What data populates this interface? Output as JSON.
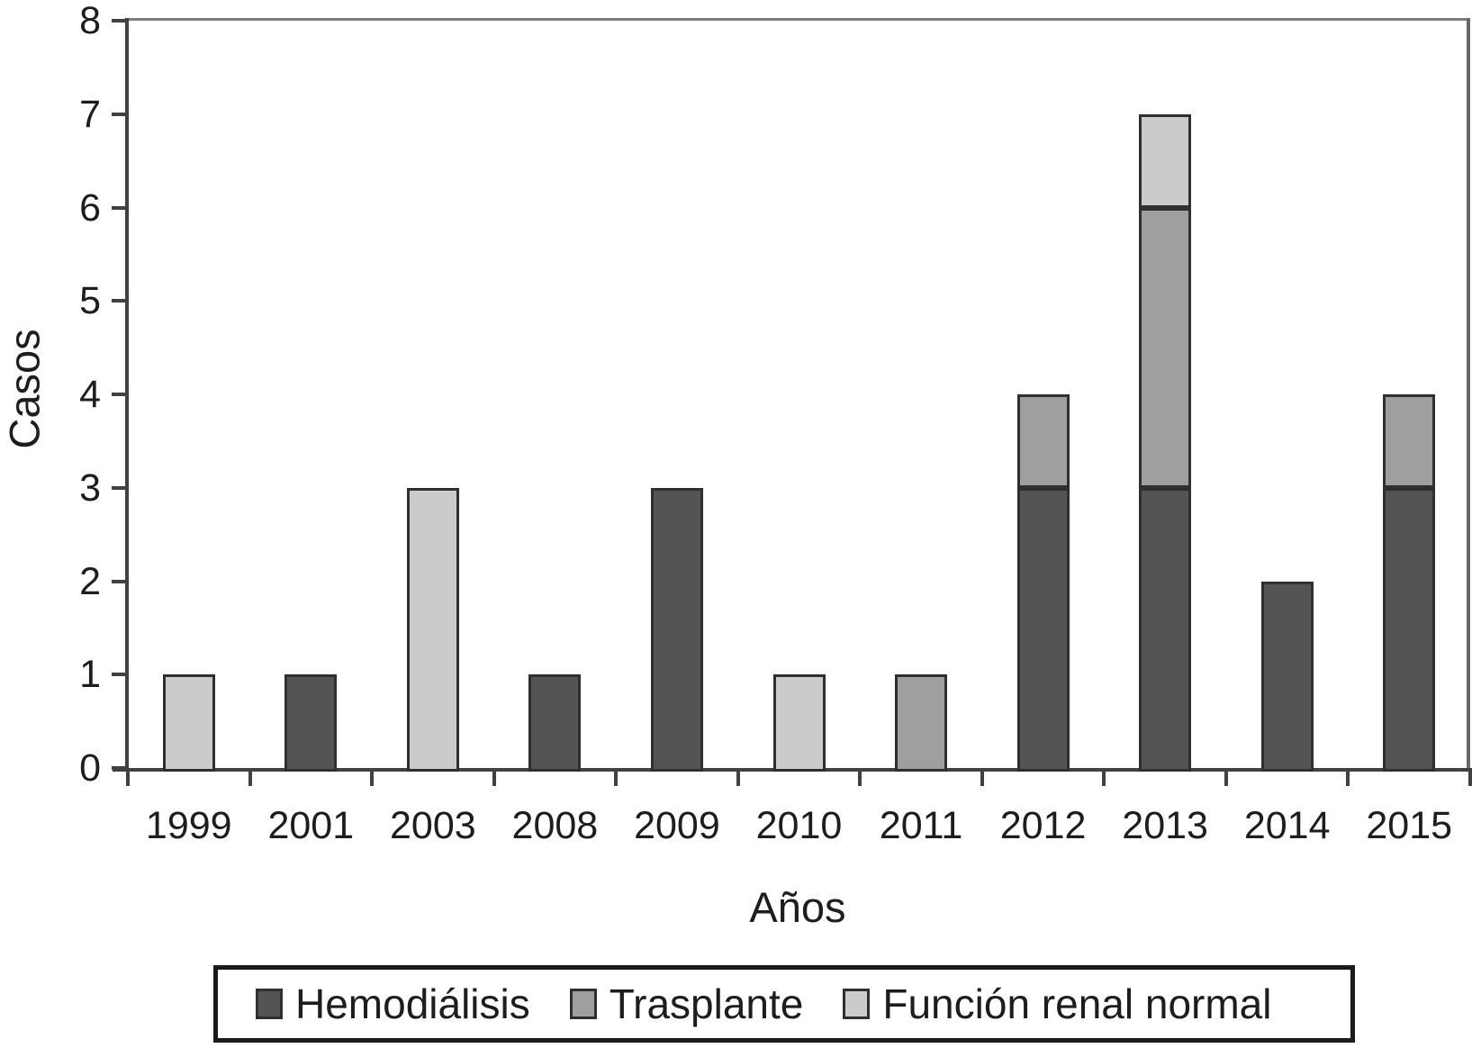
{
  "chart_data": {
    "type": "bar",
    "stacked": true,
    "title": "",
    "categories": [
      "1999",
      "2001",
      "2003",
      "2008",
      "2009",
      "2010",
      "2011",
      "2012",
      "2013",
      "2014",
      "2015"
    ],
    "series": [
      {
        "name": "Hemodiálisis",
        "color": "#545456",
        "values": [
          0,
          1,
          0,
          1,
          3,
          0,
          0,
          3,
          3,
          2,
          3
        ]
      },
      {
        "name": "Trasplante",
        "color": "#9f9fa1",
        "values": [
          0,
          0,
          0,
          0,
          0,
          0,
          1,
          1,
          3,
          0,
          1
        ]
      },
      {
        "name": "Función renal normal",
        "color": "#cbcbcd",
        "values": [
          1,
          0,
          3,
          0,
          0,
          1,
          0,
          0,
          1,
          0,
          0
        ]
      }
    ],
    "totals_by_year": [
      1,
      1,
      3,
      1,
      3,
      1,
      1,
      4,
      7,
      2,
      4
    ],
    "xlabel": "Años",
    "ylabel": "Casos",
    "ylim": [
      0,
      8
    ],
    "yticks": [
      0,
      1,
      2,
      3,
      4,
      5,
      6,
      7,
      8
    ],
    "grid": false,
    "legend_position": "bottom"
  },
  "colors": {
    "background": "#ffffff",
    "text": "#1d1d1f",
    "axis": "#414143",
    "plot_border_top": "#7d7d7f",
    "plot_border_right": "#68686a",
    "bar_border": "#2f2f31",
    "legend_border": "#1b1b1d"
  }
}
